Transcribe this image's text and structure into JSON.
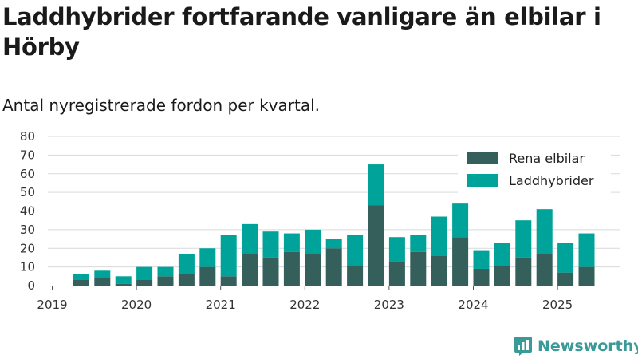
{
  "title": "Laddhybrider fortfarande vanligare än elbilar i Hörby",
  "subtitle": "Antal nyregistrerade fordon per kvartal.",
  "logo": {
    "text": "Newsworthy",
    "icon": "newsworthy-logo-icon"
  },
  "colors": {
    "rena": "#355f5a",
    "ladd": "#00a39a",
    "grid": "#d9d9d9",
    "axis": "#555555"
  },
  "chart_data": {
    "type": "bar",
    "stacked": true,
    "categories": [
      "2019 Q1",
      "2019 Q2",
      "2019 Q3",
      "2019 Q4",
      "2020 Q1",
      "2020 Q2",
      "2020 Q3",
      "2020 Q4",
      "2021 Q1",
      "2021 Q2",
      "2021 Q3",
      "2021 Q4",
      "2022 Q1",
      "2022 Q2",
      "2022 Q3",
      "2022 Q4",
      "2023 Q1",
      "2023 Q2",
      "2023 Q3",
      "2023 Q4",
      "2024 Q1",
      "2024 Q2",
      "2024 Q3",
      "2024 Q4",
      "2025 Q1",
      "2025 Q2"
    ],
    "series": [
      {
        "name": "Rena elbilar",
        "values": [
          0,
          3,
          4,
          1,
          3,
          5,
          6,
          10,
          5,
          17,
          15,
          18,
          17,
          20,
          11,
          43,
          13,
          18,
          16,
          26,
          9,
          11,
          15,
          17,
          7,
          10
        ]
      },
      {
        "name": "Laddhybrider",
        "values": [
          0,
          3,
          4,
          4,
          7,
          5,
          11,
          10,
          22,
          16,
          14,
          10,
          13,
          5,
          16,
          22,
          13,
          9,
          21,
          18,
          10,
          12,
          20,
          24,
          16,
          18
        ]
      }
    ],
    "x_tick_labels": [
      "2019",
      "2020",
      "2021",
      "2022",
      "2023",
      "2024",
      "2025"
    ],
    "y_ticks": [
      0,
      10,
      20,
      30,
      40,
      50,
      60,
      70,
      80
    ],
    "ylim": [
      0,
      80
    ],
    "xlabel": "",
    "ylabel": "",
    "grid": true,
    "legend": "top-right"
  }
}
